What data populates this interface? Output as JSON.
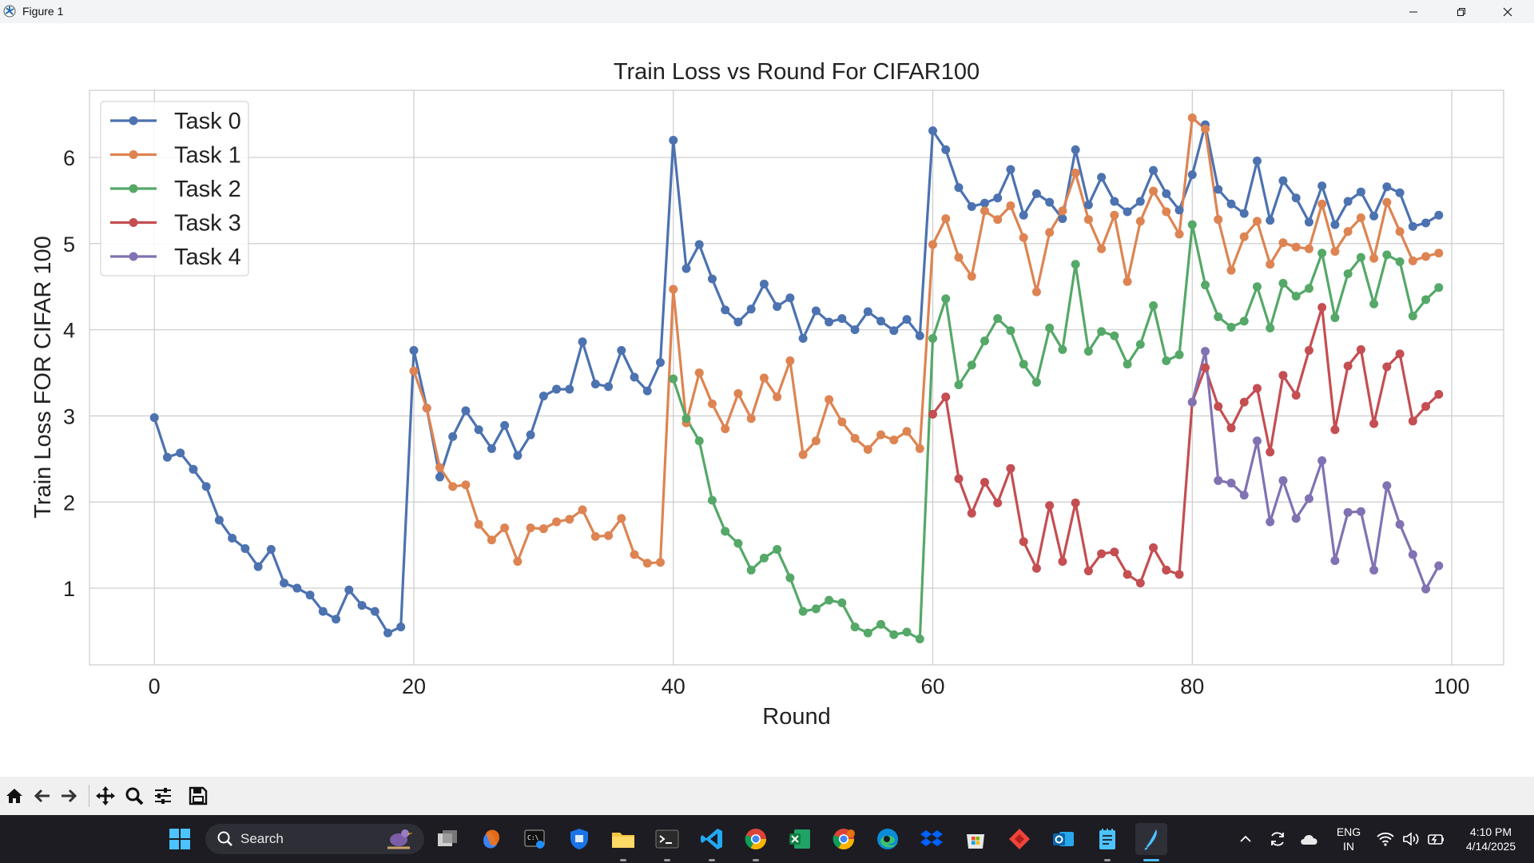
{
  "window": {
    "title": "Figure 1"
  },
  "chart_data": {
    "type": "line",
    "title": "Train Loss vs Round For CIFAR100",
    "xlabel": "Round",
    "ylabel": "Train Loss FOR CIFAR 100",
    "xlim": [
      -5,
      104
    ],
    "ylim": [
      0.11,
      6.78
    ],
    "xticks": [
      0,
      20,
      40,
      60,
      80,
      100
    ],
    "yticks": [
      1,
      2,
      3,
      4,
      5,
      6
    ],
    "grid": true,
    "legend_position": "top-left",
    "series": [
      {
        "name": "Task 0",
        "color": "#4c72b0",
        "x": [
          0,
          1,
          2,
          3,
          4,
          5,
          6,
          7,
          8,
          9,
          10,
          11,
          12,
          13,
          14,
          15,
          16,
          17,
          18,
          19,
          20,
          21,
          22,
          23,
          24,
          25,
          26,
          27,
          28,
          29,
          30,
          31,
          32,
          33,
          34,
          35,
          36,
          37,
          38,
          39,
          40,
          41,
          42,
          43,
          44,
          45,
          46,
          47,
          48,
          49,
          50,
          51,
          52,
          53,
          54,
          55,
          56,
          57,
          58,
          59,
          60,
          61,
          62,
          63,
          64,
          65,
          66,
          67,
          68,
          69,
          70,
          71,
          72,
          73,
          74,
          75,
          76,
          77,
          78,
          79,
          80,
          81,
          82,
          83,
          84,
          85,
          86,
          87,
          88,
          89,
          90,
          91,
          92,
          93,
          94,
          95,
          96,
          97,
          98,
          99
        ],
        "y": [
          2.98,
          2.52,
          2.57,
          2.38,
          2.18,
          1.79,
          1.58,
          1.46,
          1.25,
          1.45,
          1.06,
          1.0,
          0.92,
          0.73,
          0.64,
          0.98,
          0.8,
          0.73,
          0.48,
          0.55,
          3.76,
          3.09,
          2.29,
          2.76,
          3.06,
          2.84,
          2.62,
          2.89,
          2.54,
          2.78,
          3.23,
          3.31,
          3.31,
          3.86,
          3.37,
          3.34,
          3.76,
          3.45,
          3.29,
          3.62,
          6.2,
          4.71,
          4.99,
          4.59,
          4.23,
          4.09,
          4.24,
          4.53,
          4.27,
          4.37,
          3.9,
          4.22,
          4.09,
          4.13,
          4.0,
          4.21,
          4.1,
          3.99,
          4.12,
          3.93,
          6.31,
          6.09,
          5.65,
          5.43,
          5.47,
          5.53,
          5.86,
          5.33,
          5.58,
          5.48,
          5.29,
          6.09,
          5.45,
          5.77,
          5.49,
          5.37,
          5.49,
          5.85,
          5.58,
          5.39,
          5.8,
          6.38,
          5.63,
          5.46,
          5.35,
          5.96,
          5.27,
          5.73,
          5.53,
          5.25,
          5.67,
          5.22,
          5.49,
          5.6,
          5.32,
          5.66,
          5.59,
          5.2,
          5.24,
          5.33
        ]
      },
      {
        "name": "Task 1",
        "color": "#dd8452",
        "x": [
          20,
          21,
          22,
          23,
          24,
          25,
          26,
          27,
          28,
          29,
          30,
          31,
          32,
          33,
          34,
          35,
          36,
          37,
          38,
          39,
          40,
          41,
          42,
          43,
          44,
          45,
          46,
          47,
          48,
          49,
          50,
          51,
          52,
          53,
          54,
          55,
          56,
          57,
          58,
          59,
          60,
          61,
          62,
          63,
          64,
          65,
          66,
          67,
          68,
          69,
          70,
          71,
          72,
          73,
          74,
          75,
          76,
          77,
          78,
          79,
          80,
          81,
          82,
          83,
          84,
          85,
          86,
          87,
          88,
          89,
          90,
          91,
          92,
          93,
          94,
          95,
          96,
          97,
          98,
          99
        ],
        "y": [
          3.52,
          3.09,
          2.4,
          2.18,
          2.2,
          1.74,
          1.56,
          1.7,
          1.31,
          1.7,
          1.69,
          1.77,
          1.8,
          1.91,
          1.6,
          1.61,
          1.81,
          1.39,
          1.29,
          1.3,
          4.47,
          2.92,
          3.5,
          3.14,
          2.85,
          3.26,
          2.97,
          3.44,
          3.22,
          3.64,
          2.55,
          2.71,
          3.19,
          2.93,
          2.74,
          2.61,
          2.78,
          2.72,
          2.82,
          2.62,
          4.99,
          5.29,
          4.84,
          4.62,
          5.38,
          5.28,
          5.44,
          5.07,
          4.44,
          5.13,
          5.38,
          5.82,
          5.28,
          4.94,
          5.33,
          4.56,
          5.26,
          5.61,
          5.37,
          5.11,
          6.46,
          6.33,
          5.28,
          4.69,
          5.08,
          5.26,
          4.76,
          5.01,
          4.96,
          4.94,
          5.46,
          4.91,
          5.14,
          5.3,
          4.83,
          5.48,
          5.14,
          4.8,
          4.85,
          4.89
        ]
      },
      {
        "name": "Task 2",
        "color": "#55a868",
        "x": [
          40,
          41,
          42,
          43,
          44,
          45,
          46,
          47,
          48,
          49,
          50,
          51,
          52,
          53,
          54,
          55,
          56,
          57,
          58,
          59,
          60,
          61,
          62,
          63,
          64,
          65,
          66,
          67,
          68,
          69,
          70,
          71,
          72,
          73,
          74,
          75,
          76,
          77,
          78,
          79,
          80,
          81,
          82,
          83,
          84,
          85,
          86,
          87,
          88,
          89,
          90,
          91,
          92,
          93,
          94,
          95,
          96,
          97,
          98,
          99
        ],
        "y": [
          3.43,
          2.97,
          2.71,
          2.02,
          1.66,
          1.52,
          1.21,
          1.35,
          1.45,
          1.12,
          0.73,
          0.76,
          0.86,
          0.83,
          0.55,
          0.48,
          0.58,
          0.46,
          0.49,
          0.41,
          3.9,
          4.36,
          3.36,
          3.59,
          3.87,
          4.13,
          3.99,
          3.6,
          3.39,
          4.02,
          3.77,
          4.76,
          3.75,
          3.98,
          3.93,
          3.6,
          3.83,
          4.28,
          3.64,
          3.71,
          5.22,
          4.52,
          4.15,
          4.03,
          4.1,
          4.5,
          4.02,
          4.54,
          4.39,
          4.48,
          4.89,
          4.14,
          4.65,
          4.84,
          4.3,
          4.87,
          4.79,
          4.16,
          4.35,
          4.49
        ]
      },
      {
        "name": "Task 3",
        "color": "#c44e52",
        "x": [
          60,
          61,
          62,
          63,
          64,
          65,
          66,
          67,
          68,
          69,
          70,
          71,
          72,
          73,
          74,
          75,
          76,
          77,
          78,
          79,
          80,
          81,
          82,
          83,
          84,
          85,
          86,
          87,
          88,
          89,
          90,
          91,
          92,
          93,
          94,
          95,
          96,
          97,
          98,
          99
        ],
        "y": [
          3.02,
          3.22,
          2.27,
          1.87,
          2.23,
          1.99,
          2.39,
          1.54,
          1.23,
          1.96,
          1.31,
          1.99,
          1.2,
          1.4,
          1.42,
          1.16,
          1.06,
          1.47,
          1.21,
          1.16,
          3.16,
          3.56,
          3.11,
          2.86,
          3.16,
          3.32,
          2.58,
          3.47,
          3.24,
          3.76,
          4.26,
          2.84,
          3.58,
          3.77,
          2.91,
          3.57,
          3.72,
          2.94,
          3.11,
          3.25
        ]
      },
      {
        "name": "Task 4",
        "color": "#8172b3",
        "x": [
          80,
          81,
          82,
          83,
          84,
          85,
          86,
          87,
          88,
          89,
          90,
          91,
          92,
          93,
          94,
          95,
          96,
          97,
          98,
          99
        ],
        "y": [
          3.16,
          3.75,
          2.25,
          2.22,
          2.08,
          2.71,
          1.77,
          2.25,
          1.81,
          2.04,
          2.48,
          1.32,
          1.88,
          1.89,
          1.21,
          2.19,
          1.74,
          1.39,
          0.99,
          1.26
        ]
      }
    ]
  },
  "toolbar": {
    "buttons": [
      "home",
      "back",
      "forward",
      "pan",
      "zoom",
      "configure-subplots",
      "save"
    ]
  },
  "taskbar": {
    "search_label": "Search",
    "language_line1": "ENG",
    "language_line2": "IN",
    "time": "4:10 PM",
    "date": "4/14/2025"
  }
}
